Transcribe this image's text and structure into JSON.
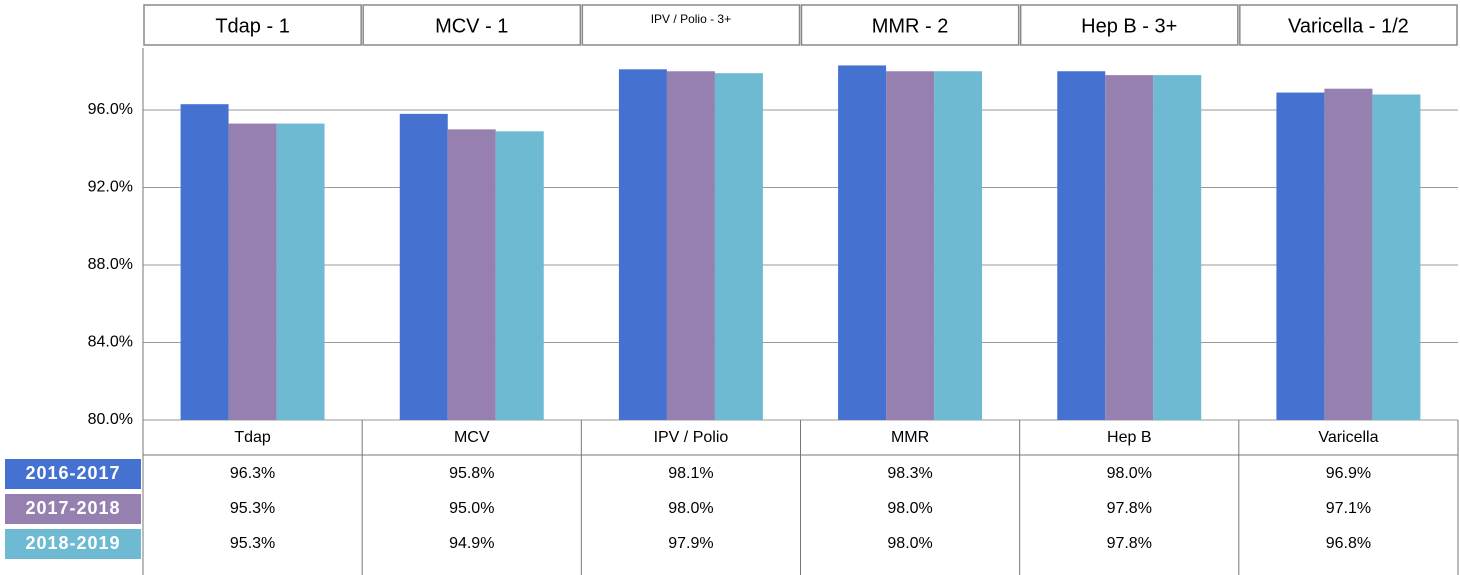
{
  "chart_data": {
    "type": "bar",
    "column_headers": [
      "Tdap - 1",
      "MCV - 1",
      "IPV / Polio - 3+",
      "MMR - 2",
      "Hep B - 3+",
      "Varicella - 1/2"
    ],
    "categories": [
      "Tdap",
      "MCV",
      "IPV / Polio",
      "MMR",
      "Hep B",
      "Varicella"
    ],
    "series": [
      {
        "name": "2016-2017",
        "color": "#4572d1",
        "values": [
          96.3,
          95.8,
          98.1,
          98.3,
          98.0,
          96.9
        ],
        "value_labels": [
          "96.3%",
          "95.8%",
          "98.1%",
          "98.3%",
          "98.0%",
          "96.9%"
        ]
      },
      {
        "name": "2017-2018",
        "color": "#9580b0",
        "values": [
          95.3,
          95.0,
          98.0,
          98.0,
          97.8,
          97.1
        ],
        "value_labels": [
          "95.3%",
          "95.0%",
          "98.0%",
          "98.0%",
          "97.8%",
          "97.1%"
        ]
      },
      {
        "name": "2018-2019",
        "color": "#6fbad3",
        "values": [
          95.3,
          94.9,
          97.9,
          98.0,
          97.8,
          96.8
        ],
        "value_labels": [
          "95.3%",
          "94.9%",
          "97.9%",
          "98.0%",
          "97.8%",
          "96.8%"
        ]
      }
    ],
    "ylim": [
      80,
      99.2
    ],
    "yticks": [
      {
        "value": 80,
        "label": "80.0%"
      },
      {
        "value": 84,
        "label": "84.0%"
      },
      {
        "value": 88,
        "label": "88.0%"
      },
      {
        "value": 92,
        "label": "92.0%"
      },
      {
        "value": 96,
        "label": "96.0%"
      }
    ],
    "grid": true
  }
}
